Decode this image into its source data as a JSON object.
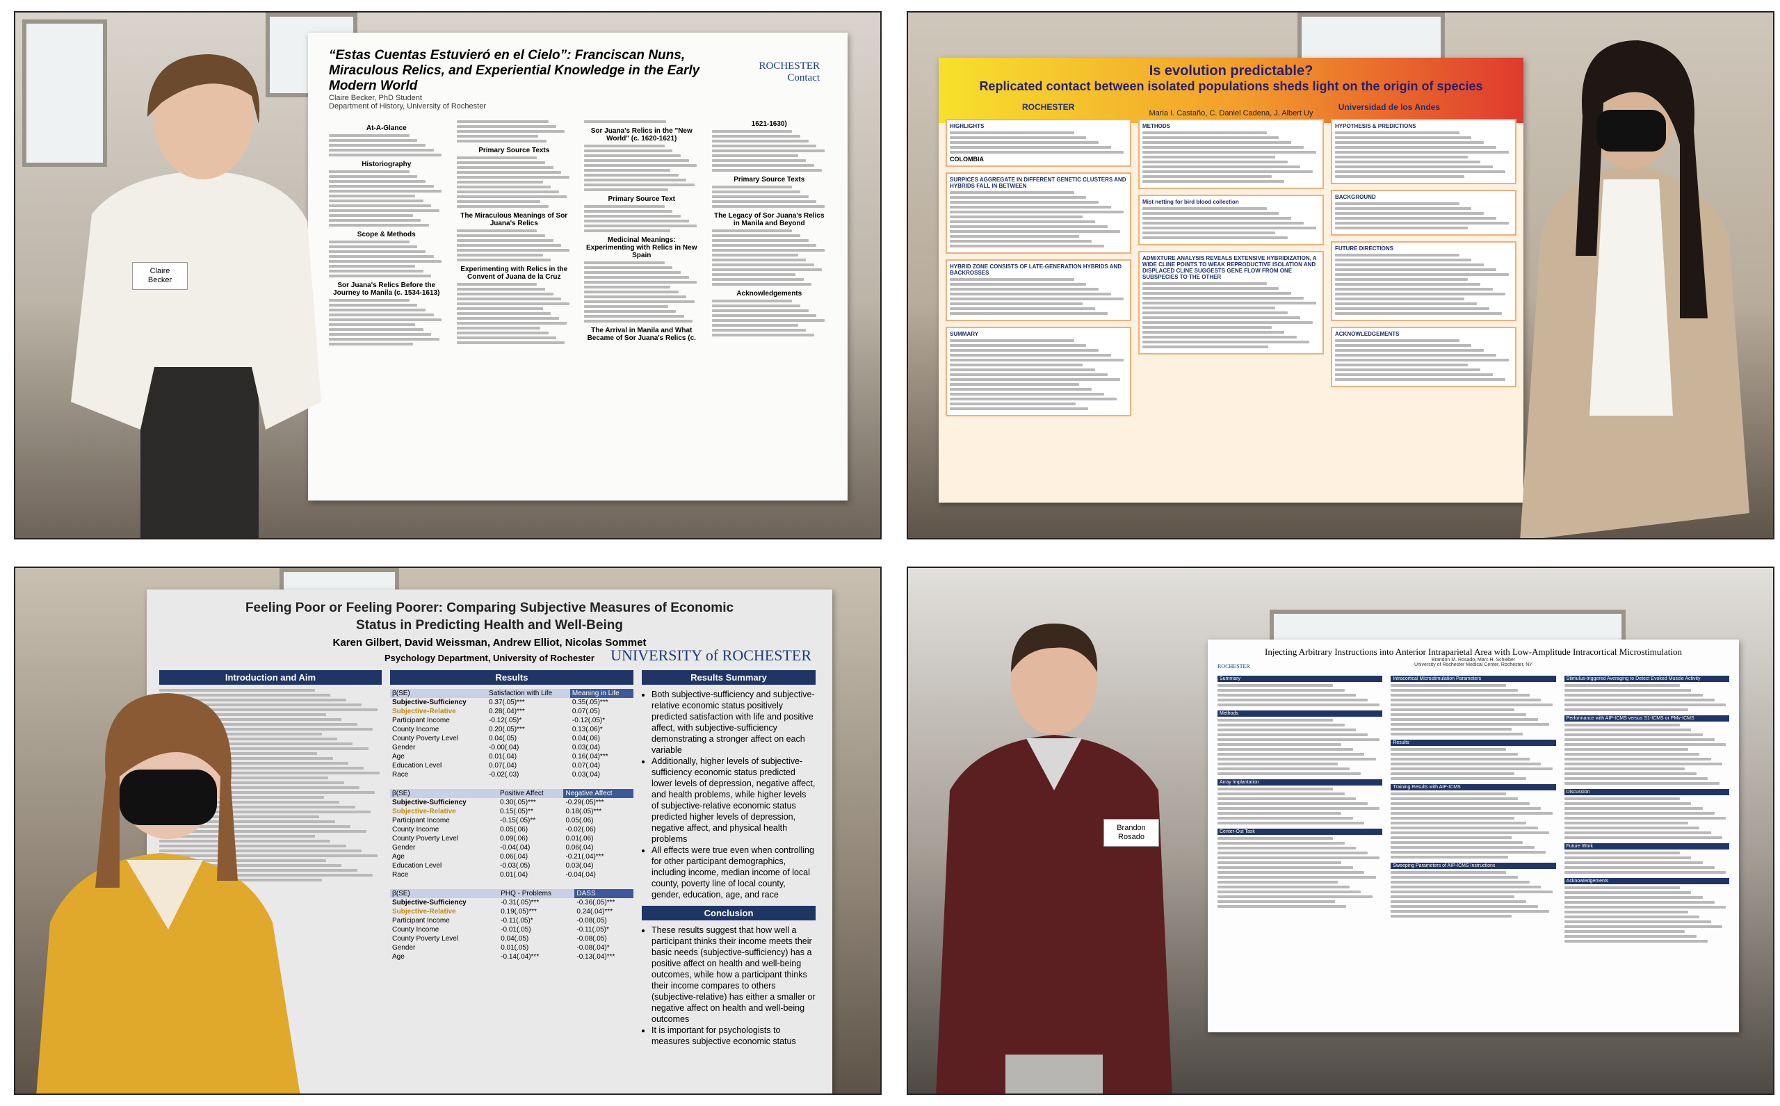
{
  "panels": [
    {
      "poster": {
        "header": [
          "“Estas Cuentas Estuvieró en el Cielo”: Franciscan Nuns, Miraculous Relics, and Experiential Knowledge in the Early Modern World",
          "Claire Becker, PhD Student",
          "Department of History, University of Rochester"
        ],
        "logo": [
          "ROCHESTER",
          "Contact"
        ],
        "sections": [
          "At-A-Glance",
          "Historiography",
          "Scope & Methods",
          "Sor Juana's Relics Before the Journey to Manila (c. 1534-1613)",
          "Primary Source Texts",
          "The Miraculous Meanings of Sor Juana's Relics",
          "Experimenting with Relics in the Convent of Juana de la Cruz",
          "Sor Juana's Relics in the \"New World\" (c. 1620-1621)",
          "Primary Source Text",
          "Medicinal Meanings: Experimenting with Relics in New Spain",
          "The Arrival in Manila and What Became of Sor Juana's Relics (c. 1621-1630)",
          "Primary Source Texts",
          "The Legacy of Sor Juana's Relics in Manila and Beyond",
          "Acknowledgements"
        ]
      },
      "name_tag": [
        "Claire",
        "Becker"
      ]
    },
    {
      "poster": {
        "header": [
          "Is evolution predictable?",
          "Replicated contact between isolated populations sheds light on the origin of species",
          "Maria I. Castaño, C. Daniel Cadena, J. Albert Uy"
        ],
        "logo": [
          "ROCHESTER",
          "Universidad de los Andes"
        ],
        "sections": [
          "HIGHLIGHTS",
          "SURPICES AGGREGATE IN DIFFERENT GENETIC CLUSTERS AND HYBRIDS FALL IN BETWEEN",
          "HYBRID ZONE CONSISTS OF LATE-GENERATION HYBRIDS AND BACKROSSES",
          "SUMMARY",
          "METHODS",
          "Mist netting for bird blood collection",
          "ADMIXTURE ANALYSIS REVEALS EXTENSIVE HYBRIDIZATION, A WIDE CLINE POINTS TO WEAK REPRODUCTIVE ISOLATION AND DISPLACED CLINE SUGGESTS GENE FLOW FROM ONE SUBSPECIES TO THE OTHER",
          "HYPOTHESIS & PREDICTIONS",
          "BACKGROUND",
          "FUTURE DIRECTIONS",
          "ACKNOWLEDGEMENTS"
        ]
      },
      "map_label": "COLOMBIA"
    },
    {
      "poster": {
        "header": [
          "Feeling Poor or Feeling Poorer: Comparing Subjective Measures of Economic Status in Predicting Health and Well-Being",
          "Karen Gilbert, David Weissman, Andrew Elliot, Nicolas Sommet",
          "Psychology Department, University of Rochester"
        ],
        "logo": [
          "UNIVERSITY of ROCHESTER"
        ],
        "sections": [
          "Introduction and Aim",
          "Results",
          "Results Summary",
          "Conclusion"
        ],
        "coef_label": "β(SE)",
        "tables": [
          {
            "columns": [
              "Satisfaction with Life",
              "Meaning in Life"
            ],
            "rows": [
              [
                "Subjective-Sufficiency",
                "0.37(.05)***",
                "0.35(.05)***"
              ],
              [
                "Subjective-Relative",
                "0.28(.04)***",
                "0.07(.05)"
              ],
              [
                "Participant Income",
                "-0.12(.05)*",
                "-0.12(.05)*"
              ],
              [
                "County Income",
                "0.20(.05)***",
                "0.13(.06)*"
              ],
              [
                "County Poverty Level",
                "0.04(.05)",
                "0.04(.06)"
              ],
              [
                "Gender",
                "-0.00(.04)",
                "0.03(.04)"
              ],
              [
                "Age",
                "0.01(.04)",
                "0.16(.04)***"
              ],
              [
                "Education Level",
                "0.07(.04)",
                "0.07(.04)"
              ],
              [
                "Race",
                "-0.02(.03)",
                "0.03(.04)"
              ]
            ]
          },
          {
            "columns": [
              "Positive Affect",
              "Negative Affect"
            ],
            "rows": [
              [
                "Subjective-Sufficiency",
                "0.30(.05)***",
                "-0.29(.05)***"
              ],
              [
                "Subjective-Relative",
                "0.15(.05)**",
                "0.18(.05)***"
              ],
              [
                "Participant Income",
                "-0.15(.05)**",
                "0.05(.06)"
              ],
              [
                "County Income",
                "0.05(.06)",
                "-0.02(.06)"
              ],
              [
                "County Poverty Level",
                "0.09(.06)",
                "0.01(.06)"
              ],
              [
                "Gender",
                "-0.04(.04)",
                "0.06(.04)"
              ],
              [
                "Age",
                "0.06(.04)",
                "-0.21(.04)***"
              ],
              [
                "Education Level",
                "-0.03(.05)",
                "0.03(.04)"
              ],
              [
                "Race",
                "0.01(.04)",
                "-0.04(.04)"
              ]
            ]
          },
          {
            "columns": [
              "PHQ - Problems",
              "DASS"
            ],
            "rows": [
              [
                "Subjective-Sufficiency",
                "-0.31(.05)***",
                "-0.36(.05)***"
              ],
              [
                "Subjective-Relative",
                "0.19(.05)***",
                "0.24(.04)***"
              ],
              [
                "Participant Income",
                "-0.11(.05)*",
                "-0.08(.05)"
              ],
              [
                "County Income",
                "-0.01(.05)",
                "-0.11(.05)*"
              ],
              [
                "County Poverty Level",
                "0.04(.05)",
                "-0.08(.05)"
              ],
              [
                "Gender",
                "0.01(.05)",
                "-0.08(.04)*"
              ],
              [
                "Age",
                "-0.14(.04)***",
                "-0.13(.04)***"
              ]
            ]
          }
        ],
        "summary": [
          "Both subjective-sufficiency and subjective-relative economic status positively predicted satisfaction with life and positive affect, with subjective-sufficiency demonstrating a stronger affect on each variable",
          "Additionally, higher levels of subjective-sufficiency economic status predicted lower levels of depression, negative affect, and health problems, while higher levels of subjective-relative economic status predicted higher levels of depression, negative affect, and physical health problems",
          "All effects were true even when controlling for other participant demographics, including income, median income of local county, poverty line of local county, gender, education, age, and race"
        ],
        "conclusion": [
          "These results suggest that how well a participant thinks their income meets their basic needs (subjective-sufficiency) has a positive affect on health and well-being outcomes, while how a participant thinks their income compares to others (subjective-relative) has either a smaller or negative affect on health and well-being outcomes",
          "It is important for psychologists to measures subjective economic status"
        ]
      }
    },
    {
      "poster": {
        "header": [
          "Injecting Arbitrary Instructions into Anterior Intraparietal Area with Low-Amplitude Intracortical Microstimulation",
          "Brandon M. Rosado, Marc H. Schieber",
          "University of Rochester Medical Center, Rochester, NY"
        ],
        "logo": [
          "ROCHESTER"
        ],
        "sections": [
          "Summary",
          "Methods",
          "Array Implantation",
          "Center-Out Task",
          "Intracortical Microstimulation Parameters",
          "Results",
          "Training Results with AIP-ICMS",
          "Sweeping Parameters of AIP-ICMS Instructions",
          "Stimulus-triggered Averaging to Detect Evoked Muscle Activity",
          "Performance with AIP-ICMS versus S1-ICMS or PMv-ICMS",
          "Discussion",
          "Future Work",
          "Acknowledgements"
        ]
      },
      "name_tag": [
        "Brandon",
        "Rosado"
      ]
    }
  ]
}
